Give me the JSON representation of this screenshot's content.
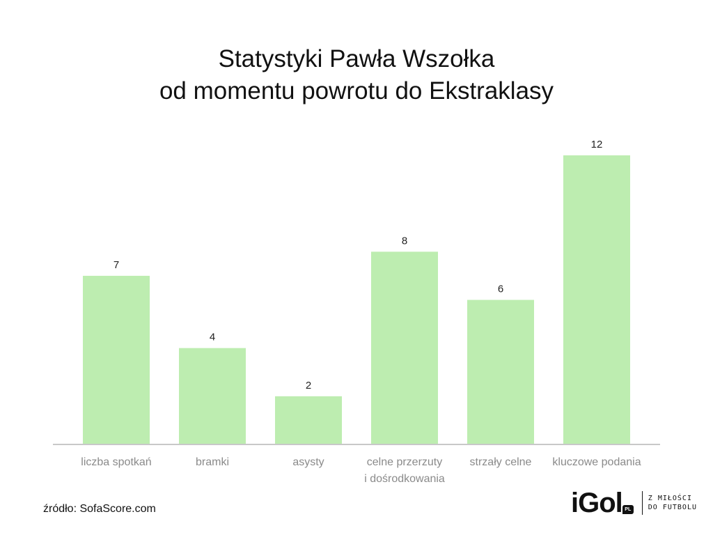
{
  "title": {
    "line1": "Statystyki Pawła Wszołka",
    "line2": "od momentu powrotu do Ekstraklasy"
  },
  "chart_data": {
    "type": "bar",
    "title": "Statystyki Pawła Wszołka od momentu powrotu do Ekstraklasy",
    "categories": [
      [
        "liczba spotkań"
      ],
      [
        "bramki"
      ],
      [
        "asysty"
      ],
      [
        "celne przerzuty",
        "i dośrodkowania"
      ],
      [
        "strzały celne"
      ],
      [
        "kluczowe podania"
      ]
    ],
    "values": [
      7,
      4,
      2,
      8,
      6,
      12
    ],
    "ylim": [
      0,
      12
    ],
    "grid": false,
    "bar_color": "#bdedb0",
    "axis_color": "#c8c8c8"
  },
  "source": "źródło: SofaScore.com",
  "logo": {
    "mark": "iGol",
    "badge": "PL",
    "tagline_line1": "Z MIŁOŚCI",
    "tagline_line2": "DO FUTBOLU"
  }
}
